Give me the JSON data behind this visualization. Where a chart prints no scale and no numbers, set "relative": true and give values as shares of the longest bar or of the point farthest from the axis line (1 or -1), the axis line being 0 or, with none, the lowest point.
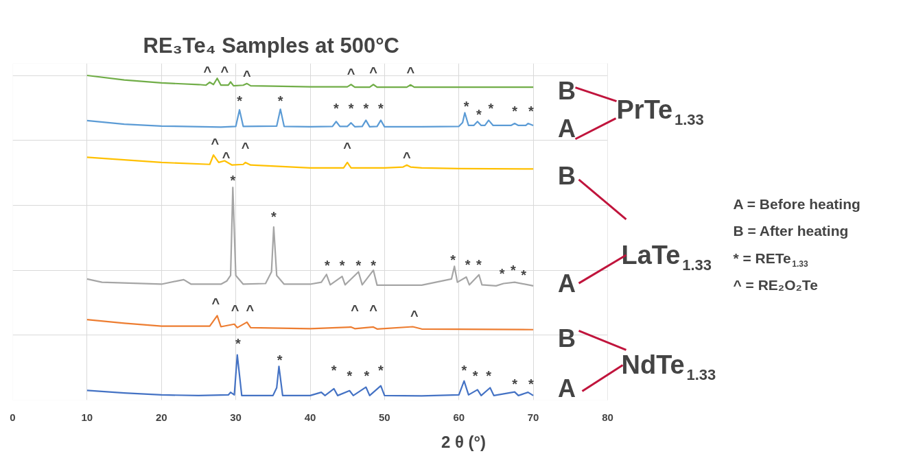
{
  "chart_data": {
    "type": "line",
    "relative": true,
    "title": "RE₃Te₄ Samples at 500°C",
    "xlabel": "2 θ (°)",
    "xlim": [
      0,
      80
    ],
    "xticks": [
      0,
      10,
      20,
      30,
      40,
      50,
      60,
      70,
      80
    ],
    "grid": true,
    "series": [
      {
        "color": "#70ad47",
        "x": [
          10,
          15,
          20,
          25,
          26,
          26.5,
          27,
          27.5,
          28,
          29,
          29.3,
          29.7,
          31,
          31.5,
          32,
          35,
          40,
          45,
          45.5,
          46,
          48,
          48.5,
          49,
          53,
          53.5,
          54,
          60,
          65,
          70
        ],
        "values": [
          1.0,
          0.986,
          0.977,
          0.972,
          0.97,
          0.979,
          0.972,
          0.991,
          0.97,
          0.97,
          0.98,
          0.968,
          0.97,
          0.975,
          0.968,
          0.967,
          0.965,
          0.965,
          0.972,
          0.964,
          0.964,
          0.972,
          0.964,
          0.964,
          0.971,
          0.964,
          0.964,
          0.964,
          0.964
        ]
      },
      {
        "color": "#5b9bd5",
        "x": [
          10,
          15,
          20,
          28,
          30,
          30.5,
          31,
          35.5,
          36,
          36.5,
          40,
          43,
          43.5,
          44,
          45,
          45.5,
          46,
          47,
          47.5,
          48,
          49,
          49.5,
          50,
          55,
          60,
          60.5,
          60.8,
          61.3,
          62,
          62.5,
          63,
          63.5,
          64,
          64.6,
          67,
          67.5,
          68,
          69,
          69.3,
          70
        ],
        "values": [
          0.861,
          0.85,
          0.844,
          0.841,
          0.843,
          0.894,
          0.843,
          0.844,
          0.896,
          0.843,
          0.842,
          0.843,
          0.858,
          0.843,
          0.843,
          0.854,
          0.842,
          0.843,
          0.862,
          0.842,
          0.843,
          0.862,
          0.842,
          0.842,
          0.843,
          0.855,
          0.885,
          0.846,
          0.846,
          0.858,
          0.846,
          0.846,
          0.862,
          0.846,
          0.846,
          0.852,
          0.846,
          0.846,
          0.852,
          0.846
        ]
      },
      {
        "color": "#ffc000",
        "x": [
          10,
          15,
          20,
          26.5,
          27,
          27.7,
          28.5,
          29.5,
          31,
          31.3,
          32,
          40,
          44.5,
          45,
          45.5,
          50,
          52.5,
          53,
          53.5,
          55,
          60,
          70
        ],
        "values": [
          0.748,
          0.74,
          0.732,
          0.726,
          0.755,
          0.732,
          0.737,
          0.724,
          0.726,
          0.732,
          0.724,
          0.715,
          0.715,
          0.732,
          0.715,
          0.715,
          0.718,
          0.724,
          0.718,
          0.715,
          0.713,
          0.712
        ]
      },
      {
        "color": "#a5a5a5",
        "x": [
          10,
          12,
          20,
          23,
          24,
          28,
          28.8,
          29.3,
          29.6,
          30,
          31,
          34,
          34.8,
          35.1,
          35.5,
          36.5,
          40,
          41.5,
          42.2,
          42.7,
          44.3,
          44.7,
          46.5,
          47,
          48.5,
          49,
          55,
          59,
          59.4,
          59.8,
          61,
          61.4,
          62.7,
          63.1,
          65,
          66,
          67.5,
          70
        ],
        "values": [
          0.373,
          0.363,
          0.357,
          0.371,
          0.357,
          0.357,
          0.367,
          0.384,
          0.655,
          0.384,
          0.357,
          0.359,
          0.395,
          0.533,
          0.384,
          0.357,
          0.357,
          0.363,
          0.387,
          0.355,
          0.381,
          0.355,
          0.395,
          0.355,
          0.4,
          0.354,
          0.354,
          0.373,
          0.412,
          0.363,
          0.379,
          0.355,
          0.386,
          0.355,
          0.352,
          0.359,
          0.363,
          0.352
        ]
      },
      {
        "color": "#ed7d31",
        "x": [
          10,
          15,
          20,
          26.5,
          27.5,
          28,
          29.8,
          30.2,
          31.5,
          32,
          40,
          45.5,
          46,
          48.5,
          49,
          53.8,
          55,
          70
        ],
        "values": [
          0.248,
          0.237,
          0.228,
          0.228,
          0.26,
          0.226,
          0.234,
          0.223,
          0.24,
          0.223,
          0.22,
          0.225,
          0.22,
          0.225,
          0.219,
          0.226,
          0.219,
          0.217
        ]
      },
      {
        "color": "#4472c4",
        "x": [
          10,
          15,
          20,
          25,
          29,
          29.3,
          29.8,
          30.2,
          30.8,
          35,
          35.5,
          35.8,
          36.3,
          40,
          41.5,
          42,
          43.2,
          43.7,
          45.3,
          45.8,
          47.5,
          48,
          49.5,
          50,
          55,
          60,
          60.7,
          61.3,
          62.5,
          63,
          64.2,
          64.7,
          67.5,
          68,
          69.3,
          70
        ],
        "values": [
          0.03,
          0.022,
          0.016,
          0.014,
          0.016,
          0.024,
          0.016,
          0.139,
          0.014,
          0.014,
          0.038,
          0.104,
          0.014,
          0.014,
          0.024,
          0.014,
          0.035,
          0.014,
          0.029,
          0.014,
          0.04,
          0.014,
          0.044,
          0.014,
          0.013,
          0.016,
          0.059,
          0.016,
          0.032,
          0.014,
          0.038,
          0.014,
          0.025,
          0.014,
          0.024,
          0.014
        ]
      }
    ],
    "annotations": [
      "B",
      "A",
      "B",
      "A",
      "B",
      "A",
      "^",
      "^",
      "^",
      "^",
      "^",
      "^",
      "*",
      "*",
      "*",
      "*",
      "*",
      "*",
      "*",
      "*",
      "*",
      "*",
      "*",
      "^",
      "^",
      "^",
      "^",
      "^",
      "*",
      "*",
      "*",
      "*",
      "*",
      "*",
      "*",
      "*",
      "*",
      "*",
      "*",
      "*",
      "^",
      "^",
      "^",
      "^",
      "^",
      "^",
      "*",
      "*",
      "*",
      "*",
      "*",
      "*",
      "*",
      "*",
      "*",
      "*",
      "*",
      "PrTe$_{1.33}$",
      "LaTe$_{1.33}$",
      "NdTe$_{1.33}$",
      "A = Before heating",
      "B = After heating",
      "* =  RETe$_{1.33}$",
      "^ = RE₂O₂Te"
    ]
  }
}
